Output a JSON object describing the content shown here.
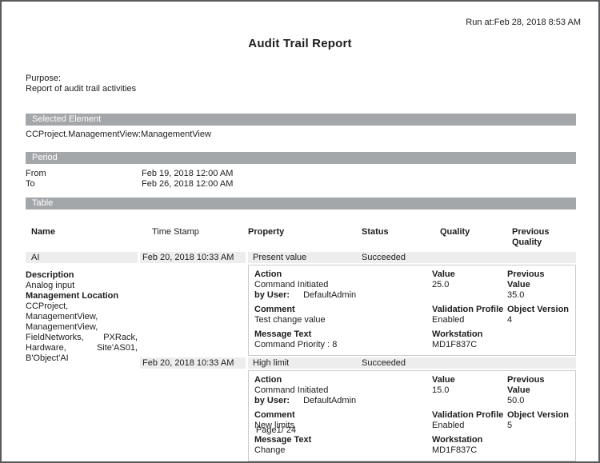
{
  "page": {
    "run_at": "Run at:Feb 28, 2018 8:53 AM",
    "title": "Audit Trail Report",
    "purpose_label": "Purpose:",
    "purpose_text": "Report of audit trail activities",
    "footer": "Page1/ 24"
  },
  "sections": {
    "selected_element": {
      "header": "Selected Element",
      "value": "CCProject.ManagementView:ManagementView"
    },
    "period": {
      "header": "Period",
      "from_label": "From",
      "from_value": "Feb 19, 2018 12:00 AM",
      "to_label": "To",
      "to_value": "Feb 26, 2018 12:00 AM"
    },
    "table": {
      "header": "Table"
    }
  },
  "table": {
    "columns": {
      "name": "Name",
      "time_stamp": "Time Stamp",
      "property": "Property",
      "status": "Status",
      "quality": "Quality",
      "previous_quality": "Previous Quality"
    },
    "labels": {
      "description": "Description",
      "management_location": "Management Location",
      "action": "Action",
      "by_user": "by User:",
      "comment": "Comment",
      "message_text": "Message Text",
      "value": "Value",
      "previous_value": "Previous Value",
      "validation_profile": "Validation Profile",
      "object_version": "Object Version",
      "workstation": "Workstation"
    },
    "row": {
      "name": "AI",
      "description": "Analog input",
      "management_location": "CCProject, ManagementView, ManagementView, FieldNetworks, PXRack, Hardware, Site'AS01, B'Object'AI",
      "entries": [
        {
          "timestamp": "Feb 20, 2018 10:33 AM",
          "property": "Present value",
          "status": "Succeeded",
          "action": "Command Initiated",
          "by_user": "DefaultAdmin",
          "comment": "Test change value",
          "message_text": "Command Priority : 8",
          "value": "25.0",
          "previous_value": "35.0",
          "validation_profile": "Enabled",
          "object_version": "4",
          "workstation": "MD1F837C"
        },
        {
          "timestamp": "Feb 20, 2018 10:33 AM",
          "property": "High limit",
          "status": "Succeeded",
          "action": "Command Initiated",
          "by_user": "DefaultAdmin",
          "comment": "New limits",
          "message_text": "Change",
          "value": "15.0",
          "previous_value": "50.0",
          "validation_profile": "Enabled",
          "object_version": "5",
          "workstation": "MD1F837C"
        }
      ]
    }
  },
  "colors": {
    "section_bar_background": "#a4a7a9",
    "section_bar_text": "#ffffff",
    "row_highlight_background": "#ededed",
    "detail_box_border": "#cccccc",
    "page_border": "#595a5c",
    "text": "#1c1c1c"
  }
}
